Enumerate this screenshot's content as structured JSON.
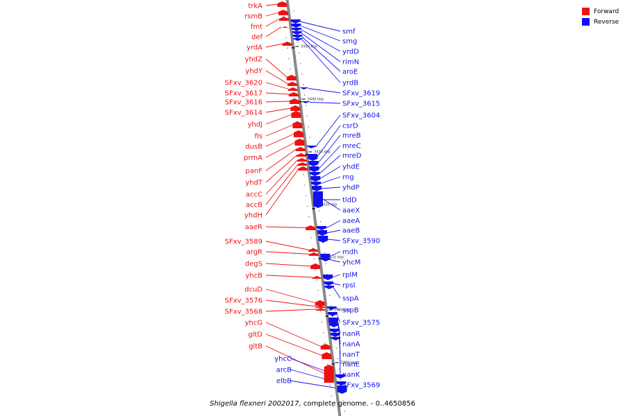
{
  "legend": {
    "forward_label": "Forward",
    "reverse_label": "Reverse",
    "forward_color": "#ee1111",
    "reverse_color": "#1111ee"
  },
  "caption": {
    "organism": "Shigella flexneri 2002017",
    "rest": ", complete genome. - 0..4650856"
  },
  "map": {
    "backbone_color": "#888888",
    "kbp_ticks": [
      "3450 kbp",
      "3440 kbp",
      "3430 kbp",
      "3420 kbp",
      "3410 kbp",
      "3400 kbp",
      "3390 kbp"
    ],
    "forward_genes": [
      "trkA",
      "rsmB",
      "fmt",
      "def",
      "yrdA",
      "yhdZ",
      "yhdY",
      "SFxv_3620",
      "SFxv_3617",
      "SFxv_3616",
      "SFxv_3614",
      "yhdJ",
      "fis",
      "dusB",
      "prmA",
      "panF",
      "yhdT",
      "accC",
      "accB",
      "yhdH",
      "aaeR",
      "SFxv_3589",
      "argR",
      "degS",
      "yhcB",
      "dcuD",
      "SFxv_3576",
      "SFxv_3568",
      "yhcG",
      "gltD",
      "gltB"
    ],
    "reverse_genes": [
      "smf",
      "smg",
      "yrdD",
      "rimN",
      "aroE",
      "yrdB",
      "SFxv_3619",
      "SFxv_3615",
      "SFxv_3604",
      "csrD",
      "mreB",
      "mreC",
      "mreD",
      "yhdE",
      "rng",
      "yhdP",
      "tldD",
      "aaeX",
      "aaeA",
      "aaeB",
      "SFxv_3590",
      "mdh",
      "yhcM",
      "rplM",
      "rpsI",
      "sspA",
      "sspB",
      "SFxv_3575",
      "nanR",
      "nanA",
      "nanT",
      "nanE",
      "nanK",
      "SFxv_3569",
      "yhcC",
      "arcB",
      "elbB"
    ]
  }
}
